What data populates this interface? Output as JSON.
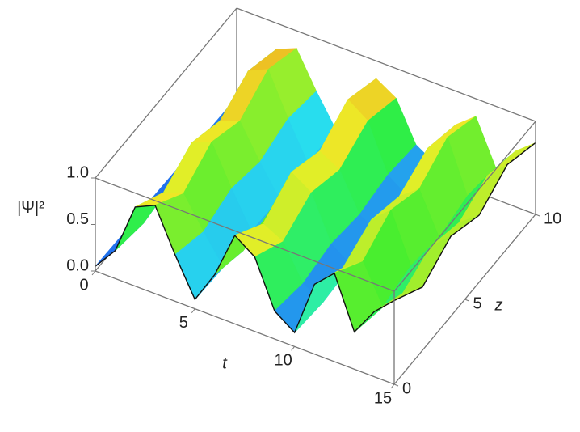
{
  "chart_data": {
    "type": "surface3d",
    "x": [
      0,
      1,
      2,
      3,
      4,
      5,
      6,
      7,
      8,
      9,
      10,
      11,
      12,
      13,
      14,
      15
    ],
    "y": [
      0,
      2,
      4,
      6,
      8,
      10
    ],
    "values": [
      [
        0.05,
        0.3,
        0.85,
        0.95,
        0.5,
        0.1,
        0.45,
        0.95,
        0.8,
        0.3,
        0.15,
        0.75,
        0.95,
        0.4,
        0.7,
        0.9
      ],
      [
        0.04,
        0.23,
        0.64,
        0.71,
        0.38,
        0.08,
        0.34,
        0.71,
        0.6,
        0.23,
        0.11,
        0.56,
        0.71,
        0.3,
        0.53,
        0.68
      ],
      [
        0.05,
        0.29,
        0.81,
        0.9,
        0.48,
        0.1,
        0.43,
        0.9,
        0.76,
        0.29,
        0.14,
        0.71,
        0.9,
        0.38,
        0.67,
        0.86
      ],
      [
        0.04,
        0.24,
        0.68,
        0.76,
        0.4,
        0.08,
        0.36,
        0.76,
        0.64,
        0.24,
        0.12,
        0.6,
        0.76,
        0.32,
        0.56,
        0.72
      ],
      [
        0.05,
        0.3,
        0.85,
        0.95,
        0.5,
        0.1,
        0.45,
        0.95,
        0.8,
        0.3,
        0.15,
        0.75,
        0.95,
        0.4,
        0.7,
        0.9
      ],
      [
        0.04,
        0.26,
        0.72,
        0.81,
        0.43,
        0.09,
        0.38,
        0.81,
        0.68,
        0.26,
        0.13,
        0.64,
        0.81,
        0.34,
        0.6,
        0.77
      ]
    ],
    "xlabel": "t",
    "ylabel": "z",
    "zlabel": "|Ψ|²",
    "xlim": [
      0,
      15
    ],
    "ylim": [
      0,
      10
    ],
    "zlim": [
      0,
      1
    ],
    "xticks": [
      0,
      5,
      10,
      15
    ],
    "yticks": [
      0,
      5,
      10
    ],
    "zticks": [
      {
        "value": 0,
        "label": "0.0"
      },
      {
        "value": 0.5,
        "label": "0.5"
      },
      {
        "value": 1,
        "label": "1.0"
      }
    ]
  }
}
